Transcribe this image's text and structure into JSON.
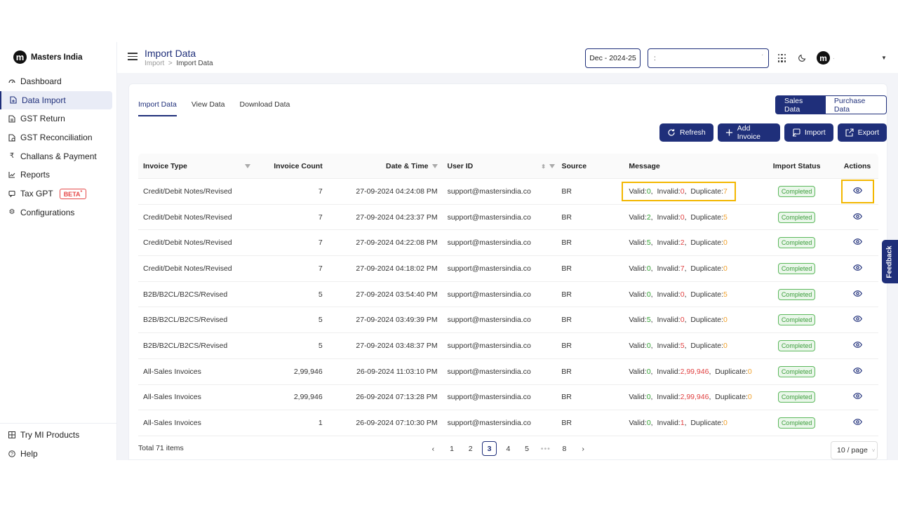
{
  "brand": {
    "name": "Masters India",
    "logo_letter": "m"
  },
  "sidebar": {
    "items": [
      {
        "label": "Dashboard",
        "icon": "dashboard-icon"
      },
      {
        "label": "Data Import",
        "icon": "file-import-icon"
      },
      {
        "label": "GST Return",
        "icon": "document-icon"
      },
      {
        "label": "GST Reconciliation",
        "icon": "reconcile-icon"
      },
      {
        "label": "Challans & Payment",
        "icon": "rupee-icon"
      },
      {
        "label": "Reports",
        "icon": "chart-icon"
      },
      {
        "label": "Tax GPT",
        "icon": "chat-icon",
        "badge": "BETA"
      },
      {
        "label": "Configurations",
        "icon": "gear-icon"
      }
    ],
    "bottom": [
      {
        "label": "Try MI Products",
        "icon": "grid-icon"
      },
      {
        "label": "Help",
        "icon": "help-icon"
      }
    ]
  },
  "header": {
    "title": "Import Data",
    "breadcrumb": [
      "Import",
      ">",
      "Import Data"
    ],
    "period": "Dec - 2024-25",
    "gstin_value": ":",
    "user_initial": "m",
    "user_name": "."
  },
  "tabs": [
    "Import Data",
    "View Data",
    "Download Data"
  ],
  "toggle": {
    "on": "Sales Data",
    "off": "Purchase Data"
  },
  "actions": {
    "refresh": "Refresh",
    "add": "Add Invoice",
    "import": "Import",
    "export": "Export"
  },
  "table": {
    "headers": [
      "Invoice Type",
      "Invoice Count",
      "Date & Time",
      "User ID",
      "Source",
      "Message",
      "Import Status",
      "Actions"
    ],
    "message_labels": {
      "valid": "Valid:",
      "invalid": "Invalid:",
      "duplicate": "Duplicate:"
    },
    "rows": [
      {
        "type": "Credit/Debit Notes/Revised",
        "count": "7",
        "datetime": "27-09-2024 04:24:08 PM",
        "user": "support@mastersindia.co",
        "source": "BR",
        "valid": "0",
        "invalid": "0",
        "duplicate": "7",
        "status": "Completed"
      },
      {
        "type": "Credit/Debit Notes/Revised",
        "count": "7",
        "datetime": "27-09-2024 04:23:37 PM",
        "user": "support@mastersindia.co",
        "source": "BR",
        "valid": "2",
        "invalid": "0",
        "duplicate": "5",
        "status": "Completed"
      },
      {
        "type": "Credit/Debit Notes/Revised",
        "count": "7",
        "datetime": "27-09-2024 04:22:08 PM",
        "user": "support@mastersindia.co",
        "source": "BR",
        "valid": "5",
        "invalid": "2",
        "duplicate": "0",
        "status": "Completed"
      },
      {
        "type": "Credit/Debit Notes/Revised",
        "count": "7",
        "datetime": "27-09-2024 04:18:02 PM",
        "user": "support@mastersindia.co",
        "source": "BR",
        "valid": "0",
        "invalid": "7",
        "duplicate": "0",
        "status": "Completed"
      },
      {
        "type": "B2B/B2CL/B2CS/Revised",
        "count": "5",
        "datetime": "27-09-2024 03:54:40 PM",
        "user": "support@mastersindia.co",
        "source": "BR",
        "valid": "0",
        "invalid": "0",
        "duplicate": "5",
        "status": "Completed"
      },
      {
        "type": "B2B/B2CL/B2CS/Revised",
        "count": "5",
        "datetime": "27-09-2024 03:49:39 PM",
        "user": "support@mastersindia.co",
        "source": "BR",
        "valid": "5",
        "invalid": "0",
        "duplicate": "0",
        "status": "Completed"
      },
      {
        "type": "B2B/B2CL/B2CS/Revised",
        "count": "5",
        "datetime": "27-09-2024 03:48:37 PM",
        "user": "support@mastersindia.co",
        "source": "BR",
        "valid": "0",
        "invalid": "5",
        "duplicate": "0",
        "status": "Completed"
      },
      {
        "type": "All-Sales Invoices",
        "count": "2,99,946",
        "datetime": "26-09-2024 11:03:10 PM",
        "user": "support@mastersindia.co",
        "source": "BR",
        "valid": "0",
        "invalid": "2,99,946",
        "duplicate": "0",
        "status": "Completed"
      },
      {
        "type": "All-Sales Invoices",
        "count": "2,99,946",
        "datetime": "26-09-2024 07:13:28 PM",
        "user": "support@mastersindia.co",
        "source": "BR",
        "valid": "0",
        "invalid": "2,99,946",
        "duplicate": "0",
        "status": "Completed"
      },
      {
        "type": "All-Sales Invoices",
        "count": "1",
        "datetime": "26-09-2024 07:10:30 PM",
        "user": "support@mastersindia.co",
        "source": "BR",
        "valid": "0",
        "invalid": "1",
        "duplicate": "0",
        "status": "Completed"
      }
    ]
  },
  "pagination": {
    "total": "Total 71 items",
    "pages": [
      "1",
      "2",
      "3",
      "4",
      "5",
      "•••",
      "8"
    ],
    "current": "3",
    "page_size": "10 / page"
  },
  "feedback": "Feedback",
  "colors": {
    "primary": "#1f2f7a",
    "valid": "#2f9e2f",
    "invalid": "#e04141",
    "duplicate": "#f0a12c",
    "highlight": "#f3b700"
  }
}
